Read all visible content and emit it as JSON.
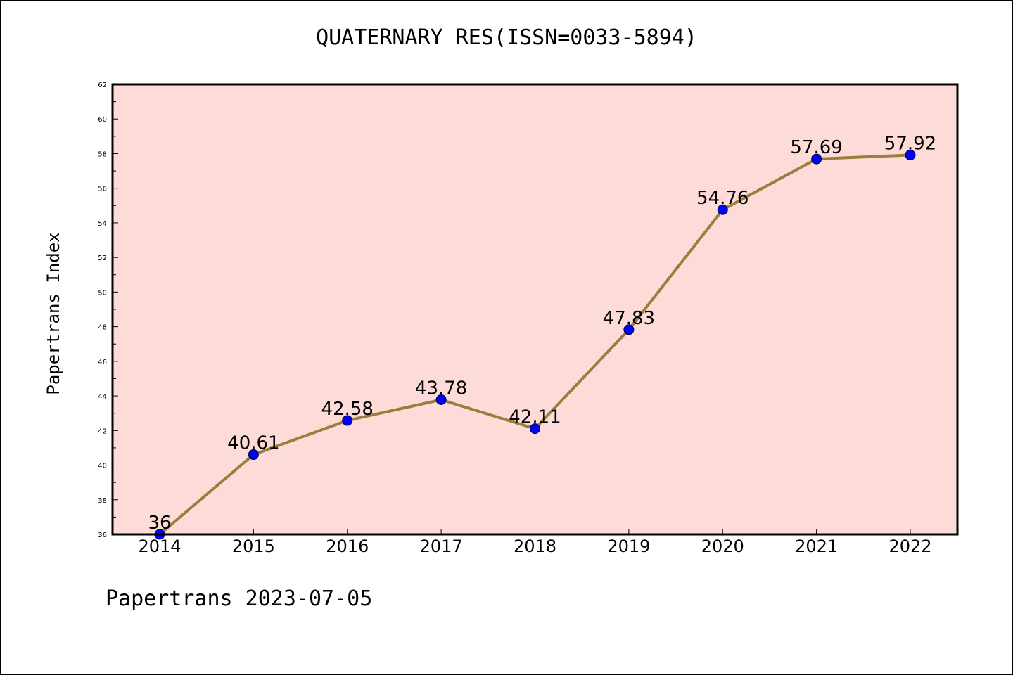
{
  "title": "QUATERNARY RES(ISSN=0033-5894)",
  "footer": "Papertrans 2023-07-05",
  "chart_data": {
    "type": "line",
    "title": "QUATERNARY RES(ISSN=0033-5894)",
    "xlabel": "",
    "ylabel": "Papertrans Index",
    "categories": [
      "2014",
      "2015",
      "2016",
      "2017",
      "2018",
      "2019",
      "2020",
      "2021",
      "2022"
    ],
    "series": [
      {
        "values": [
          36,
          40.61,
          42.58,
          43.78,
          42.11,
          47.83,
          54.76,
          57.69,
          57.92
        ],
        "labels": [
          "36",
          "40.61",
          "42.58",
          "43.78",
          "42.11",
          "47.83",
          "54.76",
          "57.69",
          "57.92"
        ]
      }
    ],
    "ylim": [
      36,
      62
    ],
    "yticks": [
      36,
      38,
      40,
      42,
      44,
      46,
      48,
      50,
      52,
      54,
      56,
      58,
      60,
      62
    ],
    "grid": false,
    "colors": {
      "plot_background": "#fddbd8",
      "line": "#9a7f3c",
      "marker": "#0000ff"
    }
  }
}
